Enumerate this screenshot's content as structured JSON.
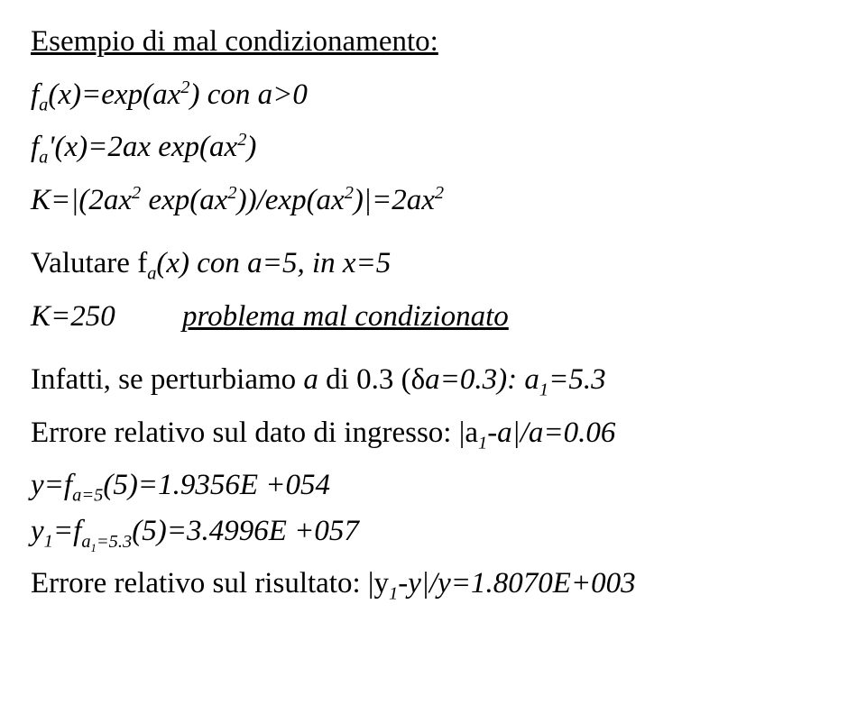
{
  "title": "Esempio di mal condizionamento:",
  "eq1_lhs_pre": "f",
  "eq1_lhs_sub": "a",
  "eq1_lhs_post": "(x)=exp(ax",
  "eq1_sup": "2",
  "eq1_close": ")",
  "eq1_cond": "   con a>0",
  "eq2_pre": "f",
  "eq2_sub": "a",
  "eq2_prime": "'",
  "eq2_mid": "(x)=2ax exp(ax",
  "eq2_sup": "2",
  "eq2_close": ")",
  "eq3_pre": "K=|(2ax",
  "eq3_sup1": "2",
  "eq3_mid1": " exp(ax",
  "eq3_sup2": "2",
  "eq3_mid2": "))/exp(ax",
  "eq3_sup3": "2",
  "eq3_mid3": ")|=2ax",
  "eq3_sup4": "2",
  "eq4_pre": "Valutare f",
  "eq4_sub": "a",
  "eq4_post": "(x) con a=5, in x=5",
  "eq5_lhs": "K=250",
  "eq5_rhs": "problema mal condizionato",
  "line6_a": "Infatti, se perturbiamo ",
  "line6_b": "a",
  "line6_c": " di 0.3 (",
  "line6_delta": "δ",
  "line6_d": "a=0.3):   a",
  "line6_sub": "1",
  "line6_e": "=5.3",
  "line7_a": "Errore relativo sul dato di ingresso:  |a",
  "line7_sub": "1",
  "line7_b": "-a|/a=0.06",
  "line8_a": "y=f",
  "line8_sub": "a=5",
  "line8_b": "(5)=1.9356E +054",
  "line9_a": "y",
  "line9_sub1": "1",
  "line9_b": "=f",
  "line9_sub2a": "a",
  "line9_sub2b": "1",
  "line9_sub2c": "=5.3",
  "line9_c": "(5)=3.4996E +057",
  "line10_a": "Errore relativo sul risultato:  |y",
  "line10_sub": "1",
  "line10_b": "-y|/y=1.8070E+003"
}
